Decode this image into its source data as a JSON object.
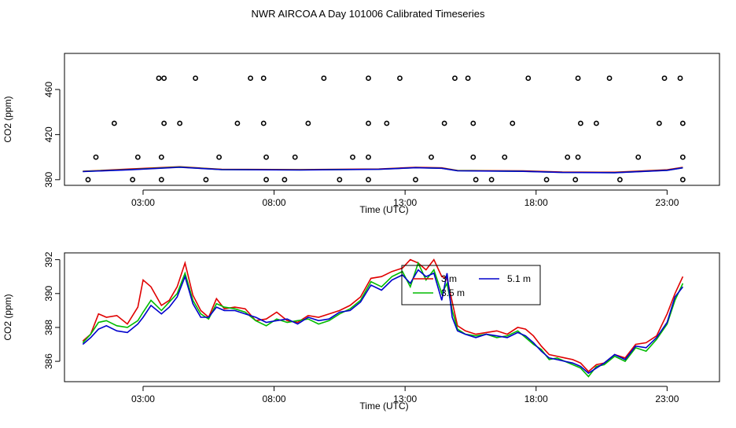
{
  "title": "NWR AIRCOA A  Day 101006  Calibrated Timeseries",
  "chart_data": [
    {
      "type": "scatter",
      "xlabel": "Time (UTC)",
      "ylabel": "CO2 (ppm)",
      "xlim": [
        0,
        25
      ],
      "ylim": [
        375,
        492
      ],
      "x_ticks": [
        3,
        8,
        13,
        18,
        23
      ],
      "x_tick_labels": [
        "03:00",
        "08:00",
        "13:00",
        "18:00",
        "23:00"
      ],
      "y_ticks": [
        380,
        420,
        460
      ],
      "y_tick_labels": [
        "380",
        "420",
        "460"
      ],
      "points": {
        "x": [
          3.6,
          3.8,
          5.0,
          7.1,
          7.6,
          9.9,
          11.6,
          12.8,
          14.9,
          15.4,
          17.7,
          19.6,
          20.8,
          22.9,
          23.5,
          1.9,
          3.8,
          4.4,
          6.6,
          7.6,
          9.3,
          11.6,
          12.3,
          14.5,
          15.6,
          17.1,
          19.7,
          20.3,
          22.7,
          23.6,
          1.2,
          2.8,
          3.7,
          5.9,
          7.7,
          8.8,
          11.0,
          11.6,
          14.0,
          15.6,
          16.8,
          19.2,
          19.6,
          21.9,
          23.6,
          0.9,
          2.6,
          3.7,
          5.4,
          7.7,
          8.4,
          10.5,
          11.6,
          13.4,
          15.7,
          16.3,
          18.4,
          19.5,
          21.2,
          23.6
        ],
        "y": [
          470,
          470,
          470,
          470,
          470,
          470,
          470,
          470,
          470,
          470,
          470,
          470,
          470,
          470,
          470,
          430,
          430,
          430,
          430,
          430,
          430,
          430,
          430,
          430,
          430,
          430,
          430,
          430,
          430,
          430,
          400,
          400,
          400,
          400,
          400,
          400,
          400,
          400,
          400,
          400,
          400,
          400,
          400,
          400,
          400,
          380,
          380,
          380,
          380,
          380,
          380,
          380,
          380,
          380,
          380,
          380,
          380,
          380,
          380,
          380
        ]
      },
      "series": [
        {
          "name": "",
          "color": "#e00000",
          "x": [
            0.7,
            2.5,
            4.4,
            6,
            9,
            12,
            13.4,
            14.4,
            15,
            17.5,
            19,
            21,
            23,
            23.6
          ],
          "values": [
            387.5,
            389.5,
            391.5,
            389.2,
            389,
            389.5,
            391,
            390.5,
            388.2,
            387.8,
            386.8,
            386.6,
            388.8,
            391
          ]
        },
        {
          "name": "",
          "color": "#00bb00",
          "x": [
            0.7,
            2.5,
            4.4,
            6,
            9,
            12,
            13.4,
            14.4,
            15,
            17.5,
            19,
            21,
            23,
            23.6
          ],
          "values": [
            387.3,
            389,
            391.2,
            389,
            388.7,
            389.3,
            390.7,
            390.2,
            388,
            387.5,
            386.5,
            386.3,
            388.4,
            390.6
          ]
        },
        {
          "name": "",
          "color": "#0000cc",
          "x": [
            0.7,
            2.5,
            4.4,
            6,
            9,
            12,
            13.4,
            14.4,
            15,
            17.5,
            19,
            21,
            23,
            23.6
          ],
          "values": [
            387.2,
            388.8,
            391,
            388.9,
            388.6,
            389.2,
            390.6,
            390.1,
            387.9,
            387.4,
            386.4,
            386.2,
            388.3,
            390.5
          ]
        }
      ]
    },
    {
      "type": "line",
      "xlabel": "Time (UTC)",
      "ylabel": "CO2 (ppm)",
      "xlim": [
        0,
        25
      ],
      "ylim": [
        384.8,
        392.4
      ],
      "x_ticks": [
        3,
        8,
        13,
        18,
        23
      ],
      "x_tick_labels": [
        "03:00",
        "08:00",
        "13:00",
        "18:00",
        "23:00"
      ],
      "y_ticks": [
        386,
        388,
        390,
        392
      ],
      "y_tick_labels": [
        "386",
        "388",
        "390",
        "392"
      ],
      "legend": {
        "position": "top-center",
        "entries": [
          {
            "label": "3 m",
            "color": "#e00000"
          },
          {
            "label": "3.5 m",
            "color": "#00bb00"
          },
          {
            "label": "5.1 m",
            "color": "#0000cc"
          }
        ]
      },
      "series": [
        {
          "name": "3 m",
          "color": "#e00000",
          "x": [
            0.7,
            1.0,
            1.3,
            1.6,
            2.0,
            2.4,
            2.8,
            3.0,
            3.3,
            3.7,
            4.0,
            4.3,
            4.6,
            4.9,
            5.2,
            5.5,
            5.8,
            6.1,
            6.5,
            6.9,
            7.3,
            7.7,
            8.1,
            8.5,
            8.9,
            9.3,
            9.7,
            10.1,
            10.5,
            10.9,
            11.3,
            11.7,
            12.1,
            12.5,
            12.9,
            13.2,
            13.5,
            13.8,
            14.1,
            14.4,
            14.6,
            14.8,
            15.0,
            15.3,
            15.7,
            16.1,
            16.5,
            16.9,
            17.3,
            17.6,
            17.9,
            18.2,
            18.5,
            18.8,
            19.1,
            19.4,
            19.7,
            20.0,
            20.3,
            20.6,
            21.0,
            21.4,
            21.8,
            22.2,
            22.6,
            23.0,
            23.3,
            23.6
          ],
          "values": [
            387.2,
            387.6,
            388.8,
            388.6,
            388.7,
            388.2,
            389.2,
            390.8,
            390.4,
            389.3,
            389.6,
            390.4,
            391.8,
            389.9,
            389.0,
            388.6,
            389.7,
            389.1,
            389.2,
            389.1,
            388.4,
            388.5,
            388.9,
            388.4,
            388.3,
            388.7,
            388.6,
            388.8,
            389.0,
            389.3,
            389.8,
            390.9,
            391.0,
            391.3,
            391.5,
            392.0,
            391.8,
            391.4,
            392.0,
            391.0,
            390.9,
            389.5,
            388.1,
            387.8,
            387.6,
            387.7,
            387.8,
            387.6,
            388.0,
            387.9,
            387.5,
            386.9,
            386.4,
            386.3,
            386.2,
            386.1,
            385.9,
            385.4,
            385.8,
            385.9,
            386.4,
            386.2,
            387.0,
            387.1,
            387.5,
            388.8,
            390.0,
            391.0
          ]
        },
        {
          "name": "3.5 m",
          "color": "#00bb00",
          "x": [
            0.7,
            1.0,
            1.3,
            1.6,
            2.0,
            2.4,
            2.8,
            3.0,
            3.3,
            3.7,
            4.0,
            4.3,
            4.6,
            4.9,
            5.2,
            5.5,
            5.8,
            6.1,
            6.5,
            6.9,
            7.3,
            7.7,
            8.1,
            8.5,
            8.9,
            9.3,
            9.7,
            10.1,
            10.5,
            10.9,
            11.3,
            11.7,
            12.1,
            12.5,
            12.9,
            13.2,
            13.5,
            13.8,
            14.1,
            14.4,
            14.6,
            14.8,
            15.0,
            15.3,
            15.7,
            16.1,
            16.5,
            16.9,
            17.3,
            17.6,
            17.9,
            18.2,
            18.5,
            18.8,
            19.1,
            19.4,
            19.7,
            20.0,
            20.3,
            20.6,
            21.0,
            21.4,
            21.8,
            22.2,
            22.6,
            23.0,
            23.3,
            23.6
          ],
          "values": [
            387.1,
            387.6,
            388.3,
            388.4,
            388.1,
            388.0,
            388.4,
            388.9,
            389.6,
            389.0,
            389.5,
            390.0,
            391.2,
            389.6,
            388.8,
            388.5,
            389.4,
            389.2,
            389.1,
            388.9,
            388.4,
            388.1,
            388.5,
            388.3,
            388.4,
            388.5,
            388.2,
            388.4,
            388.8,
            389.1,
            389.6,
            390.7,
            390.4,
            391.0,
            391.3,
            390.4,
            391.8,
            390.8,
            391.4,
            390.0,
            390.6,
            389.0,
            387.9,
            387.6,
            387.5,
            387.6,
            387.4,
            387.5,
            387.8,
            387.4,
            387.0,
            386.7,
            386.1,
            386.2,
            386.0,
            385.8,
            385.6,
            385.1,
            385.7,
            385.8,
            386.3,
            386.0,
            386.8,
            386.6,
            387.3,
            388.2,
            389.6,
            390.6
          ]
        },
        {
          "name": "5.1 m",
          "color": "#0000cc",
          "x": [
            0.7,
            1.0,
            1.3,
            1.6,
            2.0,
            2.4,
            2.8,
            3.0,
            3.3,
            3.7,
            4.0,
            4.3,
            4.6,
            4.9,
            5.2,
            5.5,
            5.8,
            6.1,
            6.5,
            6.9,
            7.3,
            7.7,
            8.1,
            8.5,
            8.9,
            9.3,
            9.7,
            10.1,
            10.5,
            10.9,
            11.3,
            11.7,
            12.1,
            12.5,
            12.9,
            13.2,
            13.5,
            13.8,
            14.1,
            14.4,
            14.6,
            14.8,
            15.0,
            15.3,
            15.7,
            16.1,
            16.5,
            16.9,
            17.3,
            17.6,
            17.9,
            18.2,
            18.5,
            18.8,
            19.1,
            19.4,
            19.7,
            20.0,
            20.3,
            20.6,
            21.0,
            21.4,
            21.8,
            22.2,
            22.6,
            23.0,
            23.3,
            23.6
          ],
          "values": [
            387.0,
            387.4,
            387.9,
            388.1,
            387.8,
            387.7,
            388.2,
            388.6,
            389.3,
            388.8,
            389.2,
            389.8,
            391.0,
            389.4,
            388.6,
            388.6,
            389.2,
            389.0,
            389.0,
            388.8,
            388.6,
            388.3,
            388.4,
            388.5,
            388.2,
            388.6,
            388.4,
            388.5,
            388.9,
            389.0,
            389.5,
            390.5,
            390.2,
            390.8,
            391.1,
            390.6,
            391.4,
            391.0,
            391.2,
            389.6,
            391.2,
            388.6,
            387.8,
            387.6,
            387.4,
            387.6,
            387.5,
            387.4,
            387.7,
            387.5,
            387.1,
            386.6,
            386.2,
            386.1,
            386.0,
            385.9,
            385.7,
            385.3,
            385.6,
            385.9,
            386.4,
            386.1,
            386.9,
            386.8,
            387.4,
            388.3,
            389.8,
            390.4
          ]
        }
      ]
    }
  ]
}
